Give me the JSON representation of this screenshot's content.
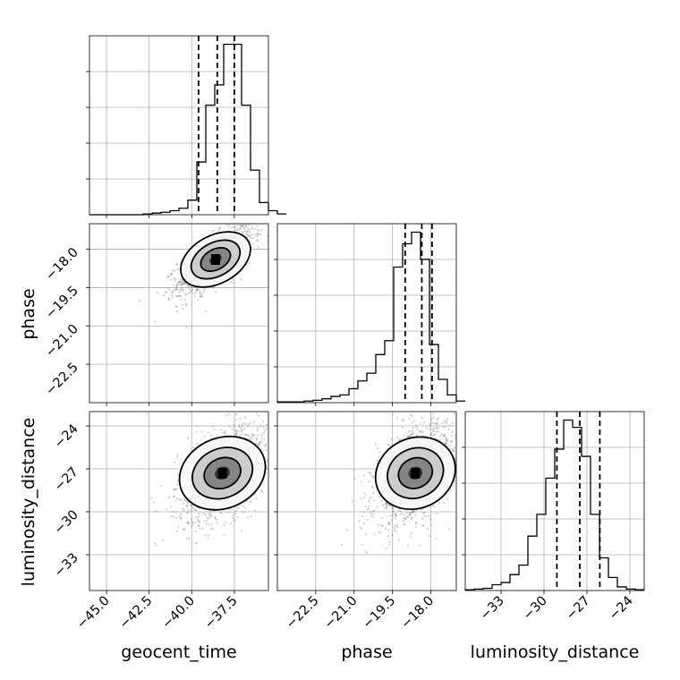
{
  "chart_data": {
    "type": "corner",
    "parameters": [
      {
        "name": "geocent_time",
        "range": [
          -46.0,
          -35.5
        ],
        "ticks": [
          -45.0,
          -42.5,
          -40.0,
          -37.5
        ],
        "tick_labels": [
          "−45.0",
          "−42.5",
          "−40.0",
          "−37.5"
        ],
        "quantiles": [
          -39.6,
          -38.5,
          -37.5
        ]
      },
      {
        "name": "phase",
        "range": [
          -24.0,
          -17.0
        ],
        "ticks": [
          -22.5,
          -21.0,
          -19.5,
          -18.0
        ],
        "tick_labels": [
          "−22.5",
          "−21.0",
          "−19.5",
          "−18.0"
        ],
        "quantiles": [
          -19.0,
          -18.35,
          -17.95
        ]
      },
      {
        "name": "luminosity_distance",
        "range": [
          -35.5,
          -23.0
        ],
        "ticks": [
          -33,
          -30,
          -27,
          -24
        ],
        "tick_labels": [
          "−33",
          "−30",
          "−27",
          "−24"
        ],
        "quantiles": [
          -29.1,
          -27.5,
          -26.1
        ]
      }
    ],
    "histograms": [
      {
        "param": "geocent_time",
        "edges_start": -46.0,
        "bin_width": 0.525,
        "counts": [
          0,
          0,
          0,
          0,
          0,
          0,
          1,
          2,
          3,
          5,
          8,
          18,
          65,
          135,
          160,
          210,
          210,
          135,
          55,
          15,
          5,
          1
        ]
      },
      {
        "param": "phase",
        "edges_start": -24.0,
        "bin_width": 0.35,
        "counts": [
          1,
          1,
          1,
          2,
          3,
          5,
          8,
          10,
          18,
          28,
          38,
          62,
          80,
          175,
          205,
          220,
          185,
          75,
          30,
          10,
          2
        ]
      },
      {
        "param": "luminosity_distance",
        "edges_start": -35.5,
        "bin_width": 0.625,
        "counts": [
          1,
          2,
          3,
          8,
          11,
          22,
          35,
          75,
          105,
          155,
          195,
          235,
          225,
          185,
          105,
          45,
          18,
          5,
          2,
          1
        ]
      }
    ],
    "pairs": [
      {
        "x": "geocent_time",
        "y": "phase",
        "mean": [
          -38.6,
          -18.4
        ],
        "sd": [
          1.1,
          0.65
        ],
        "rho": 0.7
      },
      {
        "x": "geocent_time",
        "y": "luminosity_distance",
        "mean": [
          -38.2,
          -27.3
        ],
        "sd": [
          1.3,
          1.7
        ],
        "rho": 0.45
      },
      {
        "x": "phase",
        "y": "luminosity_distance",
        "mean": [
          -18.6,
          -27.3
        ],
        "sd": [
          0.8,
          1.7
        ],
        "rho": 0.45
      }
    ],
    "axis_labels": {
      "x": [
        "geocent_time",
        "phase",
        "luminosity_distance"
      ],
      "y": [
        "phase",
        "luminosity_distance"
      ]
    },
    "grid": true
  }
}
